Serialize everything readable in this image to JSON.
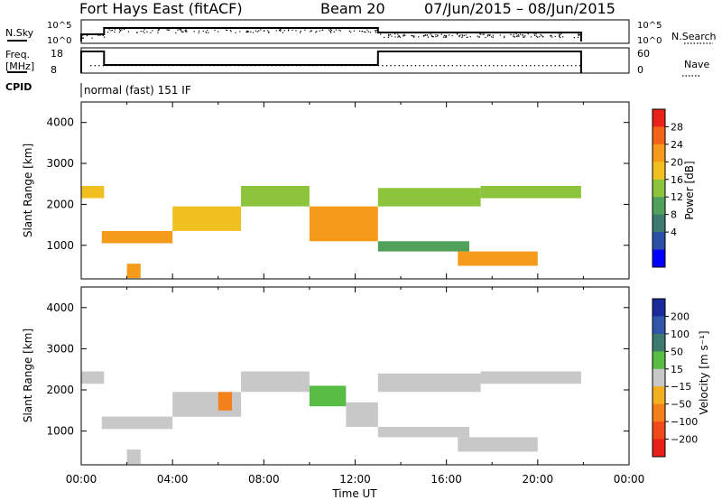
{
  "header": {
    "station": "Fort Hays East (fitACF)",
    "beam": "Beam 20",
    "dates": "07/Jun/2015 – 08/Jun/2015"
  },
  "top_panels": {
    "nsky_label": "N.Sky",
    "freq_label_1": "Freq.",
    "freq_label_2": "[MHz]",
    "cpid_label": "CPID",
    "nsearch_label": "N.Search",
    "nave_label": "Nave",
    "noise_tick_high": "10^5",
    "noise_tick_low": "10^0",
    "freq_ticks": [
      "18",
      "8"
    ],
    "nave_ticks": [
      "60",
      "0"
    ],
    "cpid_text": "normal (fast) 151 IF"
  },
  "chart_data": [
    {
      "type": "heatmap",
      "name": "power",
      "ylabel": "Slant Range [km]",
      "yticks": [
        "4000",
        "3000",
        "2000",
        "1000"
      ],
      "ylim": [
        180,
        4500
      ],
      "xlim": [
        0,
        24
      ],
      "colorbar_label": "Power [dB]",
      "colorbar_ticks": [
        "28",
        "24",
        "20",
        "16",
        "12",
        "8",
        "4"
      ],
      "colorbar_colors": [
        "#0000ff",
        "#2c4fa8",
        "#3c7a6e",
        "#4ea05a",
        "#8cc43c",
        "#f0c020",
        "#f49b1c",
        "#f2641a",
        "#e8221a"
      ],
      "bands": [
        {
          "t": [
            0.0,
            1.0
          ],
          "r": [
            2150,
            2450
          ],
          "power": 18
        },
        {
          "t": [
            0.9,
            4.0
          ],
          "r": [
            1050,
            1350
          ],
          "power": 24
        },
        {
          "t": [
            4.0,
            7.0
          ],
          "r": [
            1350,
            1950
          ],
          "power": 18
        },
        {
          "t": [
            7.0,
            10.0
          ],
          "r": [
            1950,
            2450
          ],
          "power": 14
        },
        {
          "t": [
            10.0,
            13.0
          ],
          "r": [
            1100,
            1950
          ],
          "power": 22
        },
        {
          "t": [
            13.0,
            17.5
          ],
          "r": [
            1950,
            2400
          ],
          "power": 16
        },
        {
          "t": [
            17.5,
            21.9
          ],
          "r": [
            2150,
            2450
          ],
          "power": 14
        },
        {
          "t": [
            13.0,
            17.0
          ],
          "r": [
            850,
            1100
          ],
          "power": 10
        },
        {
          "t": [
            16.5,
            20.0
          ],
          "r": [
            500,
            850
          ],
          "power": 22
        },
        {
          "t": [
            2.0,
            2.6
          ],
          "r": [
            200,
            550
          ],
          "power": 24
        }
      ]
    },
    {
      "type": "heatmap",
      "name": "velocity",
      "ylabel": "Slant Range [km]",
      "yticks": [
        "4000",
        "3000",
        "2000",
        "1000"
      ],
      "ylim": [
        180,
        4500
      ],
      "xlim": [
        0,
        24
      ],
      "colorbar_label": "Velocity [m s⁻¹]",
      "colorbar_ticks": [
        "200",
        "100",
        "50",
        "15",
        "−15",
        "−50",
        "−100",
        "−200"
      ],
      "colorbar_colors": [
        "#1a2a9c",
        "#2f56a8",
        "#3c7a6e",
        "#57bd44",
        "#c8c8c8",
        "#f0b020",
        "#f4801c",
        "#f04a1a",
        "#e8201a"
      ],
      "bands": [
        {
          "t": [
            0.0,
            1.0
          ],
          "r": [
            2150,
            2450
          ],
          "velocity": 0
        },
        {
          "t": [
            0.9,
            4.0
          ],
          "r": [
            1050,
            1350
          ],
          "velocity": 0
        },
        {
          "t": [
            4.0,
            7.0
          ],
          "r": [
            1350,
            1950
          ],
          "velocity": 0
        },
        {
          "t": [
            6.0,
            6.6
          ],
          "r": [
            1500,
            1950
          ],
          "velocity": -40
        },
        {
          "t": [
            7.0,
            10.0
          ],
          "r": [
            1950,
            2450
          ],
          "velocity": 0
        },
        {
          "t": [
            10.0,
            11.6
          ],
          "r": [
            1600,
            2100
          ],
          "velocity": 30
        },
        {
          "t": [
            11.6,
            13.0
          ],
          "r": [
            1100,
            1700
          ],
          "velocity": 0
        },
        {
          "t": [
            13.0,
            17.5
          ],
          "r": [
            1950,
            2400
          ],
          "velocity": 0
        },
        {
          "t": [
            17.5,
            21.9
          ],
          "r": [
            2150,
            2450
          ],
          "velocity": 0
        },
        {
          "t": [
            13.0,
            17.0
          ],
          "r": [
            850,
            1100
          ],
          "velocity": 0
        },
        {
          "t": [
            16.5,
            20.0
          ],
          "r": [
            500,
            850
          ],
          "velocity": 0
        },
        {
          "t": [
            2.0,
            2.6
          ],
          "r": [
            200,
            550
          ],
          "velocity": 0
        }
      ]
    }
  ],
  "time_axis": {
    "ticks": [
      "00:00",
      "04:00",
      "08:00",
      "12:00",
      "16:00",
      "20:00",
      "00:00"
    ],
    "label": "Time UT"
  }
}
